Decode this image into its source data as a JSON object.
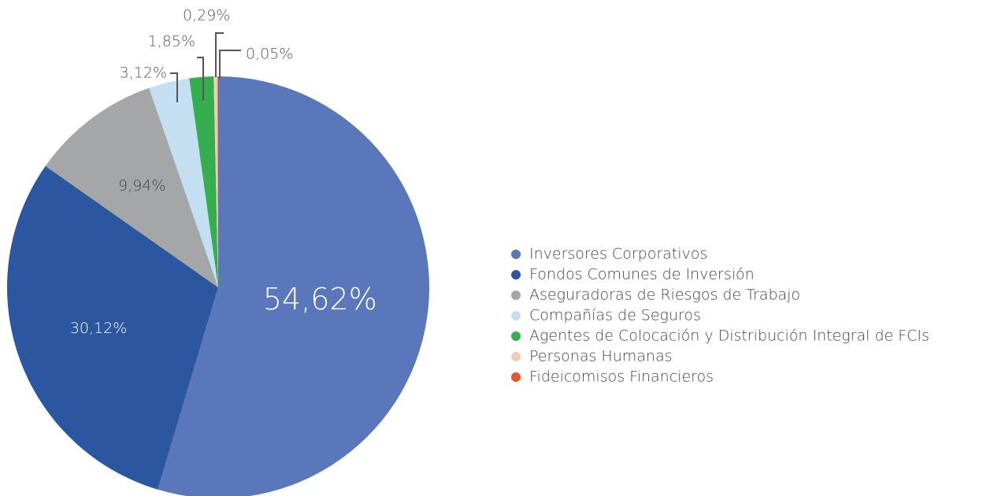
{
  "chart_data": {
    "type": "pie",
    "categories": [
      "Inversores Corporativos",
      "Fondos Comunes de Inversión",
      "Aseguradoras de Riesgos de Trabajo",
      "Compañías de Seguros",
      "Agentes de Colocación y Distribución Integral de FCIs",
      "Personas Humanas",
      "Fideicomisos Financieros"
    ],
    "values": [
      54.62,
      30.12,
      9.94,
      3.12,
      1.85,
      0.29,
      0.05
    ],
    "value_labels": [
      "54,62%",
      "30,12%",
      "9,94%",
      "3,12%",
      "1,85%",
      "0,29%",
      "0,05%"
    ],
    "colors": [
      "#5b77bb",
      "#2a579f",
      "#a5a6a8",
      "#c5dff2",
      "#35ae4d",
      "#f2cdb5",
      "#e8542f"
    ],
    "legend": "right"
  }
}
